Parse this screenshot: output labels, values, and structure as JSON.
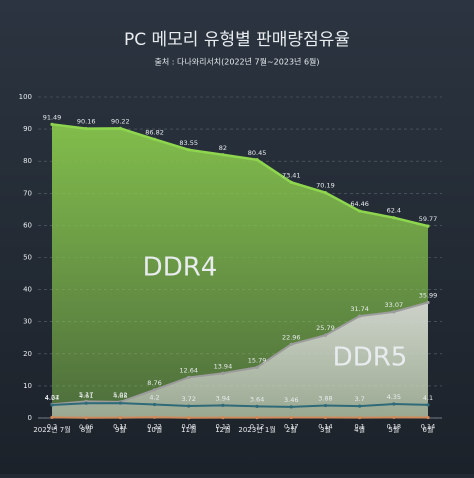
{
  "chart_data": {
    "type": "area-line",
    "title": "PC 메모리 유형별 판매량점유율",
    "subtitle": "출처 : 다나와리서치(2022년 7월~2023년 6월)",
    "categories": [
      "2022년 7월",
      "8월",
      "9월",
      "10월",
      "11월",
      "12월",
      "2023년 1월",
      "2월",
      "3월",
      "4월",
      "5월",
      "6월"
    ],
    "series": [
      {
        "name": "DDR4",
        "color": "#8fd64f",
        "values": [
          91.49,
          90.16,
          90.22,
          86.82,
          83.55,
          82,
          80.45,
          73.41,
          70.19,
          64.46,
          62.4,
          59.77
        ]
      },
      {
        "name": "DDR5",
        "color": "#9c9c9c",
        "values": [
          4.27,
          5.17,
          5.02,
          8.76,
          12.64,
          13.94,
          15.79,
          22.96,
          25.79,
          31.74,
          33.07,
          35.99
        ]
      },
      {
        "color": "#2f6a78",
        "values": [
          4.04,
          4.61,
          4.65,
          4.2,
          3.72,
          3.94,
          3.64,
          3.46,
          3.88,
          3.7,
          4.35,
          4.1
        ]
      },
      {
        "color": "#d08a5a",
        "values": [
          0.2,
          0.06,
          0.11,
          0.22,
          0.08,
          0.12,
          0.12,
          0.17,
          0.14,
          0.1,
          0.18,
          0.14
        ]
      }
    ],
    "ylim": [
      0,
      100
    ],
    "yticks": [
      0,
      10,
      20,
      30,
      40,
      50,
      60,
      70,
      80,
      90,
      100
    ],
    "grid": true
  }
}
